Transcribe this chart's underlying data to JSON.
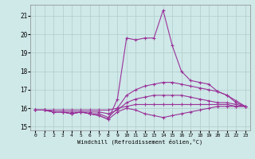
{
  "xlabel": "Windchill (Refroidissement éolien,°C)",
  "background_color": "#cfe8e8",
  "line_color": "#993399",
  "xlim": [
    -0.5,
    23.5
  ],
  "ylim": [
    14.8,
    21.6
  ],
  "yticks": [
    15,
    16,
    17,
    18,
    19,
    20,
    21
  ],
  "xticks": [
    0,
    1,
    2,
    3,
    4,
    5,
    6,
    7,
    8,
    9,
    10,
    11,
    12,
    13,
    14,
    15,
    16,
    17,
    18,
    19,
    20,
    21,
    22,
    23
  ],
  "grid_color": "#b0cccc",
  "lines": [
    [
      15.9,
      15.9,
      15.9,
      15.9,
      15.9,
      15.9,
      15.9,
      15.9,
      15.9,
      16.0,
      16.1,
      16.2,
      16.2,
      16.2,
      16.2,
      16.2,
      16.2,
      16.2,
      16.2,
      16.2,
      16.2,
      16.2,
      16.1,
      16.1
    ],
    [
      15.9,
      15.9,
      15.8,
      15.8,
      15.8,
      15.8,
      15.8,
      15.8,
      15.7,
      15.9,
      16.3,
      16.5,
      16.6,
      16.7,
      16.7,
      16.7,
      16.7,
      16.6,
      16.5,
      16.4,
      16.3,
      16.3,
      16.2,
      16.1
    ],
    [
      15.9,
      15.9,
      15.8,
      15.8,
      15.7,
      15.8,
      15.7,
      15.7,
      15.5,
      16.0,
      16.7,
      17.0,
      17.2,
      17.3,
      17.4,
      17.4,
      17.3,
      17.2,
      17.1,
      17.0,
      16.9,
      16.7,
      16.4,
      16.1
    ],
    [
      15.9,
      15.9,
      15.8,
      15.8,
      15.7,
      15.8,
      15.7,
      15.6,
      15.4,
      16.5,
      19.8,
      19.7,
      19.8,
      19.8,
      21.3,
      19.4,
      18.0,
      17.5,
      17.4,
      17.3,
      16.9,
      16.7,
      16.3,
      16.1
    ],
    [
      15.9,
      15.9,
      15.8,
      15.8,
      15.7,
      15.8,
      15.7,
      15.6,
      15.4,
      15.8,
      16.0,
      15.9,
      15.7,
      15.6,
      15.5,
      15.6,
      15.7,
      15.8,
      15.9,
      16.0,
      16.1,
      16.1,
      16.1,
      16.1
    ]
  ]
}
